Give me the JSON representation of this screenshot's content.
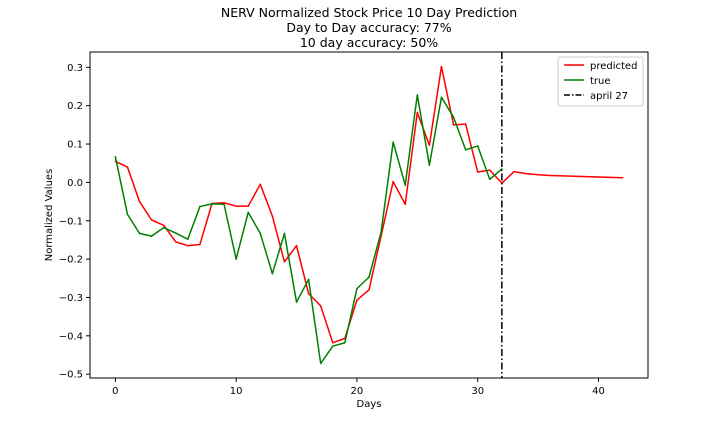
{
  "chart_data": {
    "type": "line",
    "title_lines": [
      "NERV Normalized Stock Price 10 Day Prediction",
      "Day to Day accuracy: 77%",
      "10 day accuracy: 50%"
    ],
    "xlabel": "Days",
    "ylabel": "Normalized Values",
    "xlim": [
      -2.1,
      44.1
    ],
    "ylim": [
      -0.51,
      0.34
    ],
    "xticks": [
      0,
      10,
      20,
      30,
      40
    ],
    "yticks": [
      -0.5,
      -0.4,
      -0.3,
      -0.2,
      -0.1,
      0.0,
      0.1,
      0.2,
      0.3
    ],
    "ytick_labels": [
      "−0.5",
      "−0.4",
      "−0.3",
      "−0.2",
      "−0.1",
      "0.0",
      "0.1",
      "0.2",
      "0.3"
    ],
    "legend_position": "top-right",
    "series": [
      {
        "name": "predicted",
        "color": "#ff0000",
        "x": [
          0,
          1,
          2,
          3,
          4,
          5,
          6,
          7,
          8,
          9,
          10,
          11,
          12,
          13,
          14,
          15,
          16,
          17,
          18,
          19,
          20,
          21,
          22,
          23,
          24,
          25,
          26,
          27,
          28,
          29,
          30,
          31,
          32,
          33,
          34,
          35,
          36,
          37,
          38,
          39,
          40,
          41,
          42
        ],
        "y": [
          0.055,
          0.04,
          -0.05,
          -0.098,
          -0.112,
          -0.155,
          -0.165,
          -0.162,
          -0.055,
          -0.053,
          -0.062,
          -0.062,
          -0.005,
          -0.088,
          -0.207,
          -0.165,
          -0.29,
          -0.322,
          -0.418,
          -0.407,
          -0.307,
          -0.28,
          -0.14,
          0.002,
          -0.057,
          0.182,
          0.097,
          0.302,
          0.15,
          0.152,
          0.027,
          0.032,
          -0.002,
          0.028,
          0.023,
          0.02,
          0.018,
          0.017,
          0.016,
          0.015,
          0.014,
          0.013,
          0.012
        ]
      },
      {
        "name": "true",
        "color": "#008000",
        "x": [
          0,
          1,
          2,
          3,
          4,
          5,
          6,
          7,
          8,
          9,
          10,
          11,
          12,
          13,
          14,
          15,
          16,
          17,
          18,
          19,
          20,
          21,
          22,
          23,
          24,
          25,
          26,
          27,
          28,
          29,
          30,
          31,
          32
        ],
        "y": [
          0.067,
          -0.083,
          -0.133,
          -0.14,
          -0.118,
          -0.132,
          -0.148,
          -0.063,
          -0.056,
          -0.057,
          -0.2,
          -0.078,
          -0.133,
          -0.238,
          -0.133,
          -0.312,
          -0.253,
          -0.472,
          -0.427,
          -0.418,
          -0.277,
          -0.247,
          -0.13,
          0.105,
          -0.007,
          0.228,
          0.045,
          0.222,
          0.17,
          0.085,
          0.095,
          0.008,
          0.035
        ]
      }
    ],
    "vline": {
      "name": "april 27",
      "x": 32,
      "color": "#000000",
      "style": "dash-dot"
    }
  }
}
